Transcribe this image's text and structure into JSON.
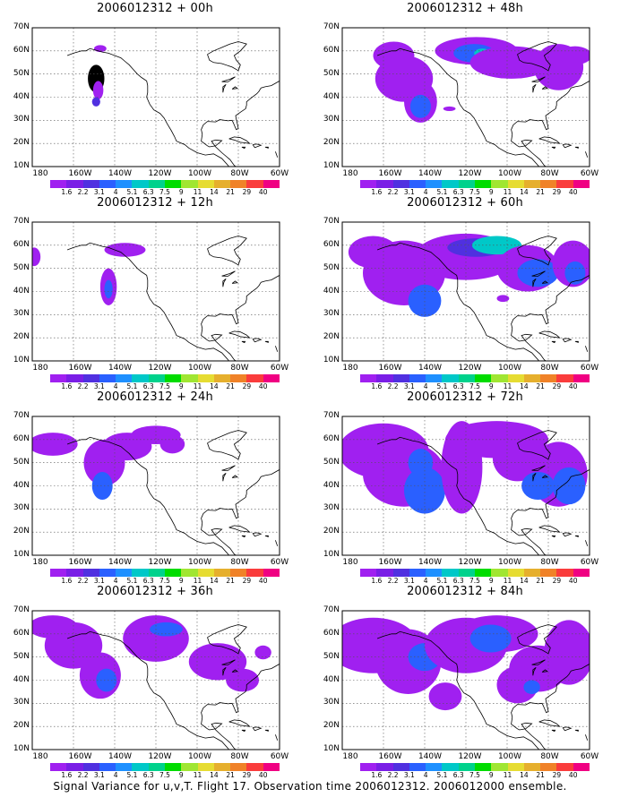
{
  "panels": [
    {
      "title": "2006012312 + 00h"
    },
    {
      "title": "2006012312 + 48h"
    },
    {
      "title": "2006012312 + 12h"
    },
    {
      "title": "2006012312 + 60h"
    },
    {
      "title": "2006012312 + 24h"
    },
    {
      "title": "2006012312 + 72h"
    },
    {
      "title": "2006012312 + 36h"
    },
    {
      "title": "2006012312 + 84h"
    }
  ],
  "map": {
    "lat_labels": [
      "70N",
      "60N",
      "50N",
      "40N",
      "30N",
      "20N",
      "10N"
    ],
    "lon_labels": [
      "180",
      "160W",
      "140W",
      "120W",
      "100W",
      "80W",
      "60W"
    ]
  },
  "colorbar": {
    "labels": [
      "1.6",
      "2.2",
      "3.1",
      "4",
      "5.1",
      "6.3",
      "7.5",
      "9",
      "11",
      "14",
      "21",
      "29",
      "40"
    ],
    "colors": [
      "#a020f0",
      "#7a1ee6",
      "#5030e0",
      "#2a60ff",
      "#1e90ff",
      "#00c8c8",
      "#00d28c",
      "#00dc00",
      "#a0e632",
      "#e6dc32",
      "#e6af2d",
      "#f08228",
      "#fa3c3c",
      "#f00082"
    ]
  },
  "footer": "Signal Variance for u,v,T. Flight 17. Observation time 2006012312. 2006012000 ensemble."
}
